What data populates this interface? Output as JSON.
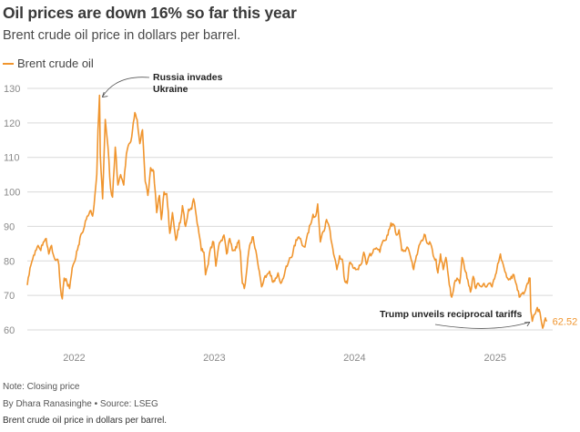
{
  "title": "Oil prices are down 16% so far this year",
  "subtitle": "Brent crude oil price in dollars per barrel.",
  "footer": {
    "note": "Note: Closing price",
    "byline": "By Dhara Ranasinghe  • Source: LSEG",
    "caption": "Brent crude oil price in dollars per barrel."
  },
  "colors": {
    "series": "#f0952e",
    "grid": "#d9d9d9",
    "tick": "#8a8a8a"
  },
  "chart_data": {
    "type": "line",
    "ylim": [
      60,
      130
    ],
    "yticks": [
      60,
      70,
      80,
      90,
      100,
      110,
      120,
      130
    ],
    "xlim": [
      "2021-09-01",
      "2025-05-31"
    ],
    "xticks": [
      {
        "label": "2022",
        "date": "2022-01-01"
      },
      {
        "label": "2023",
        "date": "2023-01-01"
      },
      {
        "label": "2024",
        "date": "2024-01-01"
      },
      {
        "label": "2025",
        "date": "2025-01-01"
      }
    ],
    "grid": true,
    "legend": "top-left",
    "series": [
      {
        "name": "Brent crude oil",
        "color": "#f0952e",
        "points": [
          [
            "2021-09-01",
            73.0
          ],
          [
            "2021-09-08",
            78.0
          ],
          [
            "2021-09-15",
            80.5
          ],
          [
            "2021-09-22",
            83.0
          ],
          [
            "2021-09-29",
            84.5
          ],
          [
            "2021-10-06",
            83.0
          ],
          [
            "2021-10-13",
            85.5
          ],
          [
            "2021-10-20",
            86.5
          ],
          [
            "2021-10-27",
            82.0
          ],
          [
            "2021-11-03",
            84.5
          ],
          [
            "2021-11-10",
            81.0
          ],
          [
            "2021-11-17",
            80.5
          ],
          [
            "2021-11-22",
            79.0
          ],
          [
            "2021-11-26",
            72.5
          ],
          [
            "2021-12-01",
            69.0
          ],
          [
            "2021-12-06",
            75.0
          ],
          [
            "2021-12-13",
            74.0
          ],
          [
            "2021-12-20",
            72.0
          ],
          [
            "2021-12-27",
            78.0
          ],
          [
            "2022-01-03",
            80.0
          ],
          [
            "2022-01-12",
            84.5
          ],
          [
            "2022-01-20",
            88.0
          ],
          [
            "2022-01-28",
            90.0
          ],
          [
            "2022-02-04",
            93.0
          ],
          [
            "2022-02-11",
            94.5
          ],
          [
            "2022-02-18",
            93.0
          ],
          [
            "2022-02-24",
            99.0
          ],
          [
            "2022-03-01",
            105.0
          ],
          [
            "2022-03-04",
            118.0
          ],
          [
            "2022-03-08",
            128.0
          ],
          [
            "2022-03-10",
            111.0
          ],
          [
            "2022-03-16",
            98.0
          ],
          [
            "2022-03-23",
            121.0
          ],
          [
            "2022-03-30",
            113.0
          ],
          [
            "2022-04-06",
            101.0
          ],
          [
            "2022-04-11",
            98.5
          ],
          [
            "2022-04-18",
            113.0
          ],
          [
            "2022-04-25",
            102.0
          ],
          [
            "2022-05-02",
            105.0
          ],
          [
            "2022-05-10",
            102.0
          ],
          [
            "2022-05-17",
            111.0
          ],
          [
            "2022-05-24",
            114.0
          ],
          [
            "2022-05-31",
            116.0
          ],
          [
            "2022-06-08",
            123.0
          ],
          [
            "2022-06-14",
            121.0
          ],
          [
            "2022-06-21",
            114.0
          ],
          [
            "2022-06-28",
            118.0
          ],
          [
            "2022-07-05",
            103.0
          ],
          [
            "2022-07-12",
            99.0
          ],
          [
            "2022-07-19",
            107.0
          ],
          [
            "2022-07-27",
            106.0
          ],
          [
            "2022-08-04",
            94.0
          ],
          [
            "2022-08-11",
            99.0
          ],
          [
            "2022-08-16",
            92.0
          ],
          [
            "2022-08-23",
            100.0
          ],
          [
            "2022-08-30",
            99.5
          ],
          [
            "2022-09-07",
            88.0
          ],
          [
            "2022-09-14",
            94.0
          ],
          [
            "2022-09-23",
            86.0
          ],
          [
            "2022-09-28",
            89.0
          ],
          [
            "2022-10-04",
            91.0
          ],
          [
            "2022-10-10",
            96.0
          ],
          [
            "2022-10-18",
            90.0
          ],
          [
            "2022-10-26",
            95.0
          ],
          [
            "2022-11-03",
            95.0
          ],
          [
            "2022-11-08",
            98.0
          ],
          [
            "2022-11-15",
            93.0
          ],
          [
            "2022-11-22",
            88.0
          ],
          [
            "2022-11-28",
            83.0
          ],
          [
            "2022-12-05",
            82.5
          ],
          [
            "2022-12-09",
            76.0
          ],
          [
            "2022-12-16",
            79.0
          ],
          [
            "2022-12-23",
            84.0
          ],
          [
            "2022-12-30",
            85.5
          ],
          [
            "2023-01-05",
            78.5
          ],
          [
            "2023-01-12",
            84.0
          ],
          [
            "2023-01-19",
            86.0
          ],
          [
            "2023-01-26",
            87.5
          ],
          [
            "2023-02-02",
            82.0
          ],
          [
            "2023-02-10",
            86.5
          ],
          [
            "2023-02-17",
            83.0
          ],
          [
            "2023-02-24",
            83.0
          ],
          [
            "2023-03-06",
            86.0
          ],
          [
            "2023-03-10",
            82.5
          ],
          [
            "2023-03-15",
            73.5
          ],
          [
            "2023-03-20",
            72.0
          ],
          [
            "2023-03-27",
            78.0
          ],
          [
            "2023-04-03",
            84.5
          ],
          [
            "2023-04-12",
            87.0
          ],
          [
            "2023-04-19",
            83.0
          ],
          [
            "2023-04-26",
            78.0
          ],
          [
            "2023-05-04",
            72.5
          ],
          [
            "2023-05-11",
            75.0
          ],
          [
            "2023-05-18",
            76.0
          ],
          [
            "2023-05-25",
            77.0
          ],
          [
            "2023-06-01",
            74.0
          ],
          [
            "2023-06-09",
            75.0
          ],
          [
            "2023-06-16",
            76.5
          ],
          [
            "2023-06-23",
            73.5
          ],
          [
            "2023-06-30",
            75.0
          ],
          [
            "2023-07-07",
            78.5
          ],
          [
            "2023-07-14",
            80.0
          ],
          [
            "2023-07-21",
            81.0
          ],
          [
            "2023-07-28",
            84.5
          ],
          [
            "2023-08-04",
            86.0
          ],
          [
            "2023-08-11",
            86.5
          ],
          [
            "2023-08-18",
            84.5
          ],
          [
            "2023-08-25",
            84.0
          ],
          [
            "2023-09-01",
            88.0
          ],
          [
            "2023-09-08",
            90.5
          ],
          [
            "2023-09-15",
            93.5
          ],
          [
            "2023-09-22",
            93.0
          ],
          [
            "2023-09-27",
            96.5
          ],
          [
            "2023-10-04",
            85.5
          ],
          [
            "2023-10-09",
            88.0
          ],
          [
            "2023-10-16",
            89.5
          ],
          [
            "2023-10-20",
            92.0
          ],
          [
            "2023-10-27",
            90.0
          ],
          [
            "2023-11-03",
            85.0
          ],
          [
            "2023-11-10",
            81.0
          ],
          [
            "2023-11-16",
            77.5
          ],
          [
            "2023-11-23",
            81.5
          ],
          [
            "2023-11-30",
            80.5
          ],
          [
            "2023-12-07",
            74.0
          ],
          [
            "2023-12-13",
            73.5
          ],
          [
            "2023-12-19",
            79.5
          ],
          [
            "2023-12-28",
            78.0
          ],
          [
            "2024-01-04",
            77.5
          ],
          [
            "2024-01-11",
            77.5
          ],
          [
            "2024-01-18",
            79.0
          ],
          [
            "2024-01-25",
            82.5
          ],
          [
            "2024-02-01",
            79.0
          ],
          [
            "2024-02-08",
            81.5
          ],
          [
            "2024-02-15",
            82.0
          ],
          [
            "2024-02-22",
            83.5
          ],
          [
            "2024-02-29",
            83.5
          ],
          [
            "2024-03-07",
            82.5
          ],
          [
            "2024-03-14",
            85.5
          ],
          [
            "2024-03-21",
            86.0
          ],
          [
            "2024-03-28",
            87.5
          ],
          [
            "2024-04-05",
            91.0
          ],
          [
            "2024-04-12",
            90.5
          ],
          [
            "2024-04-19",
            87.5
          ],
          [
            "2024-04-26",
            89.0
          ],
          [
            "2024-05-03",
            83.0
          ],
          [
            "2024-05-10",
            83.0
          ],
          [
            "2024-05-17",
            84.0
          ],
          [
            "2024-05-24",
            82.0
          ],
          [
            "2024-06-03",
            77.5
          ],
          [
            "2024-06-10",
            81.5
          ],
          [
            "2024-06-17",
            84.5
          ],
          [
            "2024-06-24",
            86.0
          ],
          [
            "2024-07-03",
            87.5
          ],
          [
            "2024-07-10",
            85.0
          ],
          [
            "2024-07-17",
            85.0
          ],
          [
            "2024-07-24",
            81.5
          ],
          [
            "2024-07-31",
            80.5
          ],
          [
            "2024-08-05",
            76.5
          ],
          [
            "2024-08-12",
            82.0
          ],
          [
            "2024-08-19",
            77.5
          ],
          [
            "2024-08-26",
            81.0
          ],
          [
            "2024-09-04",
            73.0
          ],
          [
            "2024-09-10",
            69.5
          ],
          [
            "2024-09-17",
            73.5
          ],
          [
            "2024-09-24",
            75.0
          ],
          [
            "2024-10-01",
            73.5
          ],
          [
            "2024-10-07",
            81.0
          ],
          [
            "2024-10-14",
            77.5
          ],
          [
            "2024-10-22",
            74.5
          ],
          [
            "2024-10-29",
            71.0
          ],
          [
            "2024-11-05",
            75.5
          ],
          [
            "2024-11-12",
            72.0
          ],
          [
            "2024-11-19",
            73.5
          ],
          [
            "2024-11-26",
            72.5
          ],
          [
            "2024-12-03",
            73.5
          ],
          [
            "2024-12-10",
            72.5
          ],
          [
            "2024-12-17",
            73.5
          ],
          [
            "2024-12-24",
            72.5
          ],
          [
            "2025-01-02",
            76.0
          ],
          [
            "2025-01-10",
            79.5
          ],
          [
            "2025-01-15",
            82.0
          ],
          [
            "2025-01-22",
            79.0
          ],
          [
            "2025-01-29",
            76.5
          ],
          [
            "2025-02-05",
            74.5
          ],
          [
            "2025-02-12",
            75.5
          ],
          [
            "2025-02-19",
            76.0
          ],
          [
            "2025-02-26",
            73.0
          ],
          [
            "2025-03-05",
            69.5
          ],
          [
            "2025-03-12",
            70.5
          ],
          [
            "2025-03-19",
            71.0
          ],
          [
            "2025-03-26",
            73.5
          ],
          [
            "2025-04-02",
            75.0
          ],
          [
            "2025-04-04",
            65.5
          ],
          [
            "2025-04-08",
            62.5
          ],
          [
            "2025-04-14",
            64.5
          ],
          [
            "2025-04-21",
            66.5
          ],
          [
            "2025-04-28",
            65.0
          ],
          [
            "2025-05-05",
            60.5
          ],
          [
            "2025-05-12",
            63.5
          ],
          [
            "2025-05-16",
            62.52
          ]
        ]
      }
    ],
    "annotations": [
      {
        "text": [
          "Russia invades",
          "Ukraine"
        ],
        "target_date": "2022-03-08",
        "target_value": 128
      },
      {
        "text": [
          "Trump unveils reciprocal tariffs"
        ],
        "target_date": "2025-04-04",
        "target_value": 62
      }
    ],
    "last_value_label": "62.52"
  }
}
